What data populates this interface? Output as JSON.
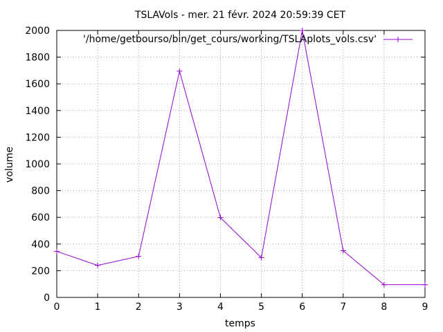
{
  "chart_data": {
    "type": "line",
    "title": "TSLAVols - mer. 21 févr. 2024 20:59:39 CET",
    "xlabel": "temps",
    "ylabel": "volume",
    "xlim": [
      0,
      9
    ],
    "ylim": [
      0,
      2000
    ],
    "xticks": [
      "0",
      "1",
      "2",
      "3",
      "4",
      "5",
      "6",
      "7",
      "8",
      "9"
    ],
    "yticks": [
      "0",
      "200",
      "400",
      "600",
      "800",
      "1000",
      "1200",
      "1400",
      "1600",
      "1800",
      "2000"
    ],
    "grid": true,
    "legend_position": "top-right",
    "series": [
      {
        "name": "'/home/getbourso/bin/get_cours/working/TSLAplots_vols.csv'",
        "color": "#9400d3",
        "marker": "plus",
        "x": [
          0,
          1,
          2,
          3,
          4,
          5,
          6,
          7,
          8,
          9
        ],
        "y": [
          345,
          240,
          308,
          1695,
          598,
          298,
          2000,
          350,
          95,
          95
        ]
      }
    ]
  }
}
